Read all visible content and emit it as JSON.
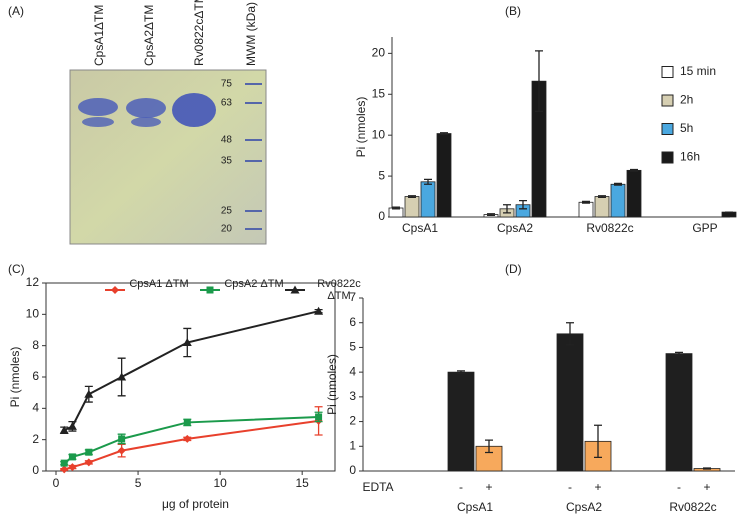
{
  "panel_labels": [
    "(A)",
    "(B)",
    "(C)",
    "(D)"
  ],
  "gel": {
    "lanes": [
      "CpsA1ΔTM",
      "CpsA2ΔTM",
      "Rv0822cΔTM",
      "MWM (kDa)"
    ],
    "markers": [
      "75",
      "63",
      "48",
      "35",
      "25",
      "20"
    ]
  },
  "chart_data": [
    {
      "type": "bar",
      "ylabel": "Pi (nmoles)",
      "categories": [
        "CpsA1",
        "CpsA2",
        "Rv0822c",
        "GPP"
      ],
      "series": [
        {
          "name": "15 min",
          "color": "#ffffff",
          "values": [
            1.1,
            0.3,
            1.8,
            null
          ],
          "errors": [
            0.1,
            0.1,
            0.1,
            null
          ]
        },
        {
          "name": "2h",
          "color": "#d6cfb2",
          "values": [
            2.5,
            1.0,
            2.5,
            null
          ],
          "errors": [
            0.1,
            0.5,
            0.1,
            null
          ]
        },
        {
          "name": "5h",
          "color": "#4aa8e0",
          "values": [
            4.3,
            1.5,
            4.0,
            null
          ],
          "errors": [
            0.3,
            0.5,
            0.1,
            null
          ]
        },
        {
          "name": "16h",
          "color": "#1a1a1a",
          "values": [
            10.2,
            16.6,
            5.7,
            0.6
          ],
          "errors": [
            0.1,
            3.7,
            0.1,
            0
          ]
        }
      ],
      "ylim": [
        0,
        22
      ],
      "yticks": [
        0,
        5,
        10,
        15,
        20
      ]
    },
    {
      "type": "line",
      "xlabel": "μg of protein",
      "ylabel": "Pi (nmoles)",
      "x": [
        0.5,
        1,
        2,
        4,
        8,
        16
      ],
      "series": [
        {
          "name": "CpsA1 ΔTM",
          "color": "#e8402c",
          "marker": "diamond",
          "values": [
            0.1,
            0.25,
            0.55,
            1.3,
            2.05,
            3.2
          ],
          "errors": [
            0.05,
            0.1,
            0.1,
            0.4,
            0.1,
            0.9
          ]
        },
        {
          "name": "CpsA2 ΔTM",
          "color": "#1b9a4b",
          "marker": "square",
          "values": [
            0.5,
            0.9,
            1.2,
            2.05,
            3.1,
            3.45
          ],
          "errors": [
            0.1,
            0.15,
            0.15,
            0.3,
            0.2,
            0.3
          ]
        },
        {
          "name": "Rv0822c ΔTM",
          "color": "#222222",
          "marker": "triangle",
          "values": [
            2.6,
            2.85,
            4.9,
            6.0,
            8.2,
            10.2
          ],
          "errors": [
            0.2,
            0.3,
            0.5,
            1.2,
            0.9,
            0.1
          ]
        }
      ],
      "xlim": [
        0,
        17
      ],
      "xticks": [
        0,
        5,
        10,
        15
      ],
      "ylim": [
        0,
        12
      ],
      "yticks": [
        0,
        2,
        4,
        6,
        8,
        10,
        12
      ]
    },
    {
      "type": "bar",
      "ylabel": "Pi (nmoles)",
      "group_label": "EDTA",
      "categories": [
        "CpsA1",
        "CpsA2",
        "Rv0822c"
      ],
      "series": [
        {
          "name": "-",
          "color": "#1f1f1f",
          "values": [
            4.0,
            5.55,
            4.75
          ],
          "errors": [
            0.05,
            0.45,
            0.05
          ]
        },
        {
          "name": "+",
          "color": "#f7a95c",
          "values": [
            1.0,
            1.2,
            0.1
          ],
          "errors": [
            0.25,
            0.65,
            0.02
          ]
        }
      ],
      "ylim": [
        0,
        7
      ],
      "yticks": [
        0,
        1,
        2,
        3,
        4,
        5,
        6,
        7
      ]
    }
  ]
}
